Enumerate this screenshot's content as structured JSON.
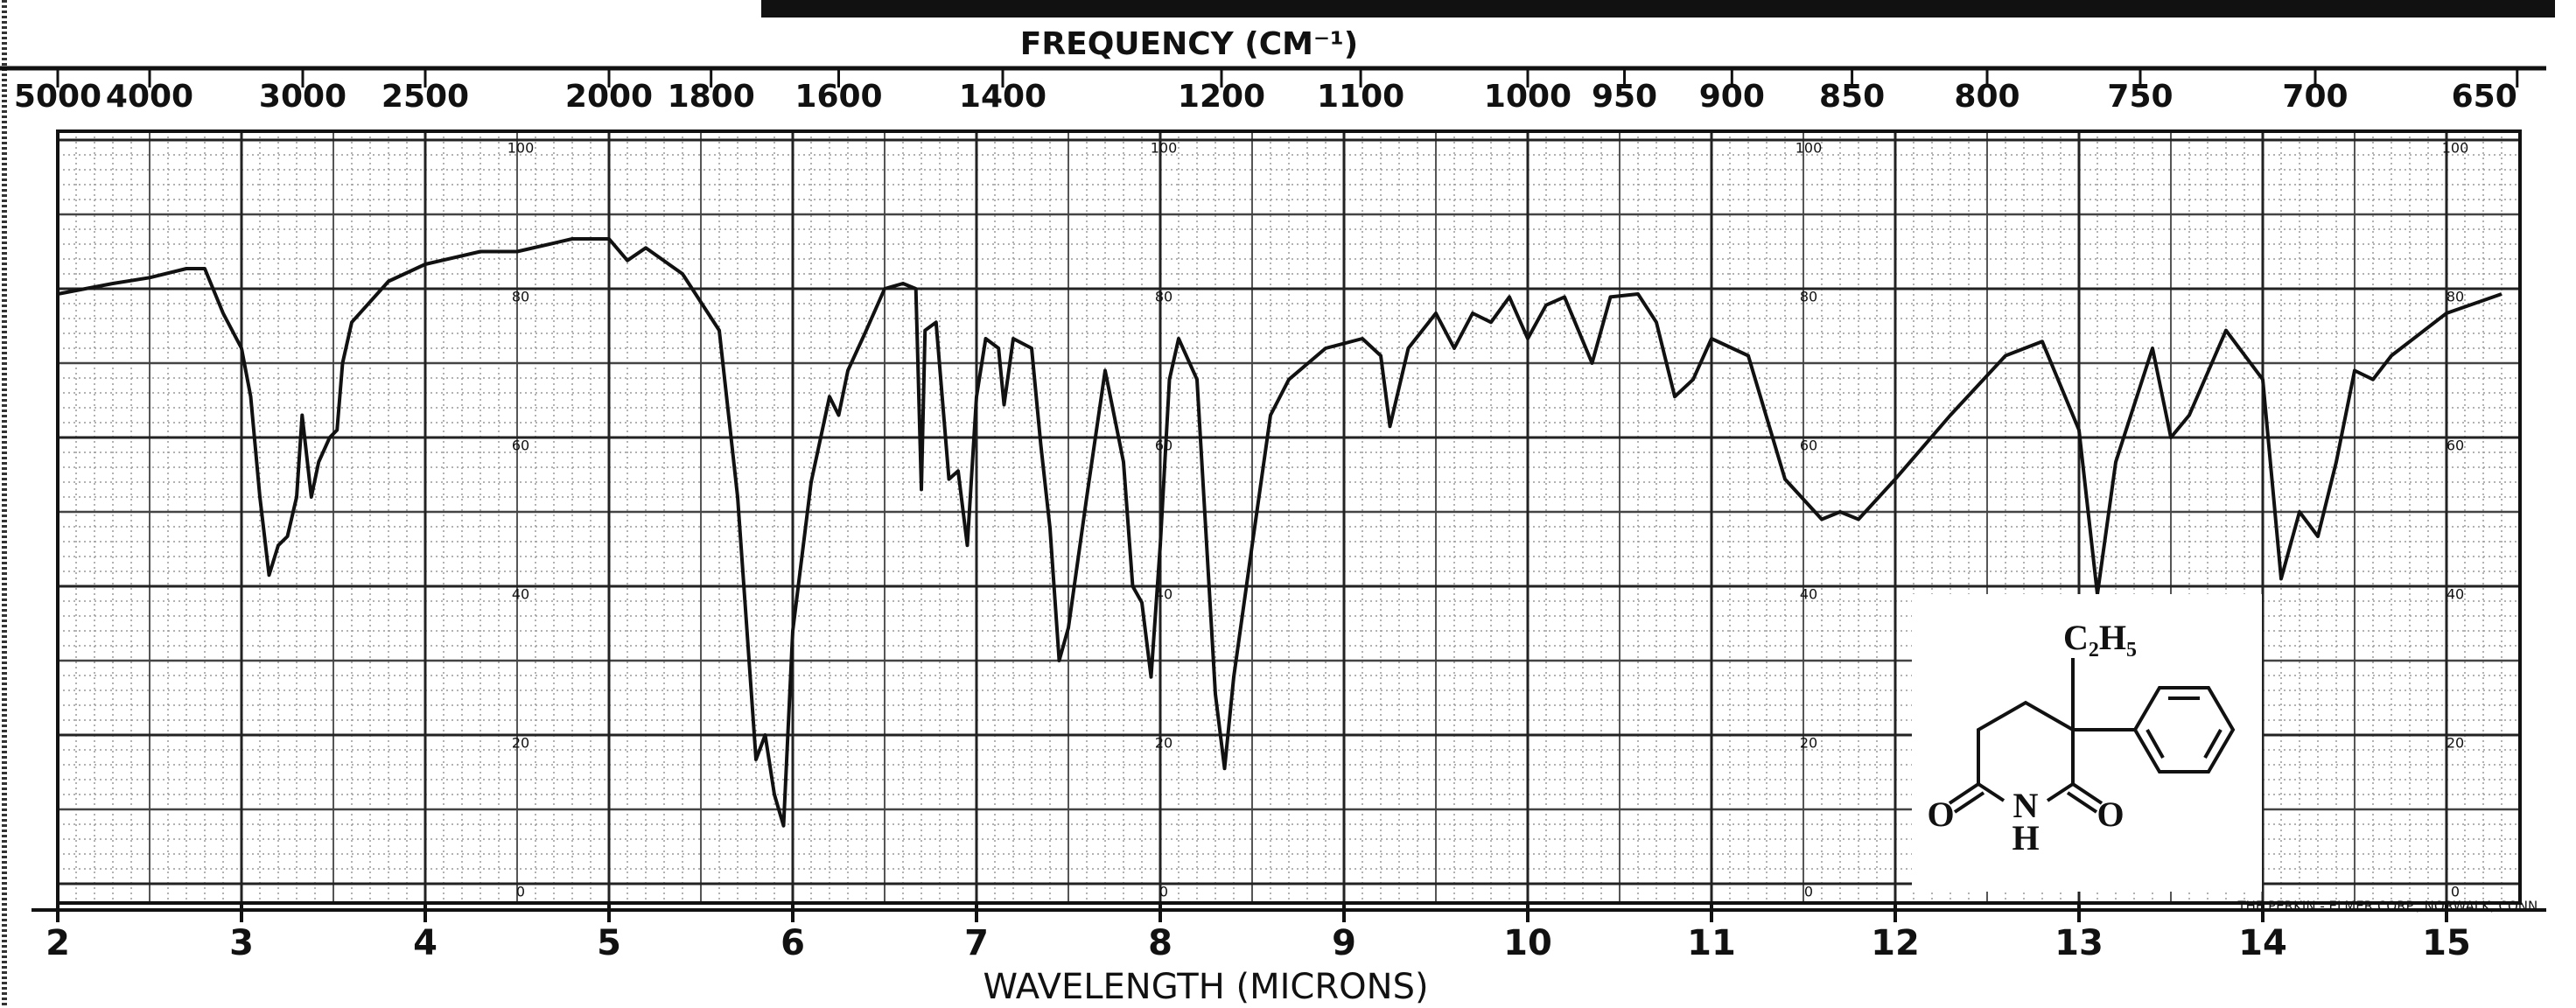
{
  "chart_data": {
    "type": "line",
    "x_label": "WAVELENGTH (MICRONS)",
    "x2_label": "FREQUENCY (CM⁻¹)",
    "annotation": "THE PERKIN - ELMER CORP., NORWALK, CONN.",
    "structure": {
      "substituent": "C₂H₅",
      "labels": [
        "O",
        "N",
        "H",
        "O"
      ]
    },
    "x": [
      2.0,
      2.3,
      2.5,
      2.7,
      2.8,
      2.9,
      3.0,
      3.05,
      3.1,
      3.15,
      3.2,
      3.25,
      3.3,
      3.33,
      3.38,
      3.42,
      3.48,
      3.52,
      3.55,
      3.6,
      3.8,
      4.0,
      4.3,
      4.5,
      4.8,
      5.0,
      5.1,
      5.2,
      5.4,
      5.6,
      5.7,
      5.8,
      5.85,
      5.9,
      5.95,
      6.0,
      6.1,
      6.2,
      6.25,
      6.3,
      6.4,
      6.5,
      6.6,
      6.67,
      6.7,
      6.72,
      6.78,
      6.85,
      6.9,
      6.95,
      7.0,
      7.05,
      7.12,
      7.15,
      7.2,
      7.3,
      7.35,
      7.4,
      7.45,
      7.5,
      7.6,
      7.7,
      7.8,
      7.85,
      7.9,
      7.95,
      8.0,
      8.05,
      8.1,
      8.2,
      8.3,
      8.35,
      8.4,
      8.5,
      8.6,
      8.7,
      8.9,
      9.1,
      9.2,
      9.25,
      9.35,
      9.5,
      9.6,
      9.7,
      9.8,
      9.9,
      10.0,
      10.1,
      10.2,
      10.35,
      10.45,
      10.6,
      10.7,
      10.8,
      10.9,
      11.0,
      11.2,
      11.4,
      11.6,
      11.7,
      11.8,
      12.0,
      12.3,
      12.6,
      12.8,
      13.0,
      13.1,
      13.2,
      13.4,
      13.5,
      13.6,
      13.8,
      14.0,
      14.1,
      14.2,
      14.3,
      14.4,
      14.5,
      14.6,
      14.7,
      15.0,
      15.3
    ],
    "series": [
      {
        "color": "#111111",
        "values": [
          79.3,
          80.7,
          81.5,
          82.7,
          82.7,
          76.7,
          72,
          65.5,
          52,
          41.5,
          45.5,
          46.7,
          52,
          63,
          52,
          56.7,
          60,
          61,
          70,
          75.5,
          81,
          83.3,
          85,
          85,
          86.7,
          86.7,
          83.8,
          85.5,
          82,
          74.4,
          52,
          16.7,
          20,
          12,
          7.8,
          34,
          54,
          65.5,
          63,
          69,
          74.4,
          80,
          80.7,
          80,
          53,
          74.4,
          75.5,
          54.4,
          55.5,
          45.5,
          65.5,
          73.3,
          72,
          64.4,
          73.3,
          72,
          59,
          47.8,
          30,
          34.4,
          52,
          69,
          56.7,
          40,
          37.8,
          27.8,
          45.5,
          67.8,
          73.3,
          67.8,
          25.5,
          15.5,
          27.8,
          45.5,
          63,
          67.8,
          72,
          73.3,
          71,
          61.5,
          72,
          76.7,
          72,
          76.7,
          75.5,
          78.9,
          73.3,
          77.8,
          78.9,
          70,
          78.9,
          79.3,
          75.5,
          65.5,
          67.8,
          73.3,
          71,
          54.4,
          49,
          50,
          49,
          54.4,
          63,
          71,
          72.9,
          61,
          38.9,
          56.7,
          72,
          60,
          63,
          74.4,
          67.8,
          41,
          50,
          46.7,
          56.7,
          69,
          67.8,
          71,
          76.7,
          79.3
        ]
      }
    ],
    "xlim": [
      2,
      15.4
    ],
    "xticks": [
      2,
      3,
      4,
      5,
      6,
      7,
      8,
      9,
      10,
      11,
      12,
      13,
      14,
      15
    ],
    "x2ticks": [
      5000,
      4000,
      3000,
      2500,
      2000,
      1800,
      1600,
      1400,
      1200,
      1100,
      1000,
      950,
      900,
      850,
      800,
      750,
      700,
      650
    ],
    "ylim": [
      0,
      100
    ],
    "yticks": [
      0,
      20,
      40,
      60,
      80,
      100
    ],
    "grid": true
  }
}
